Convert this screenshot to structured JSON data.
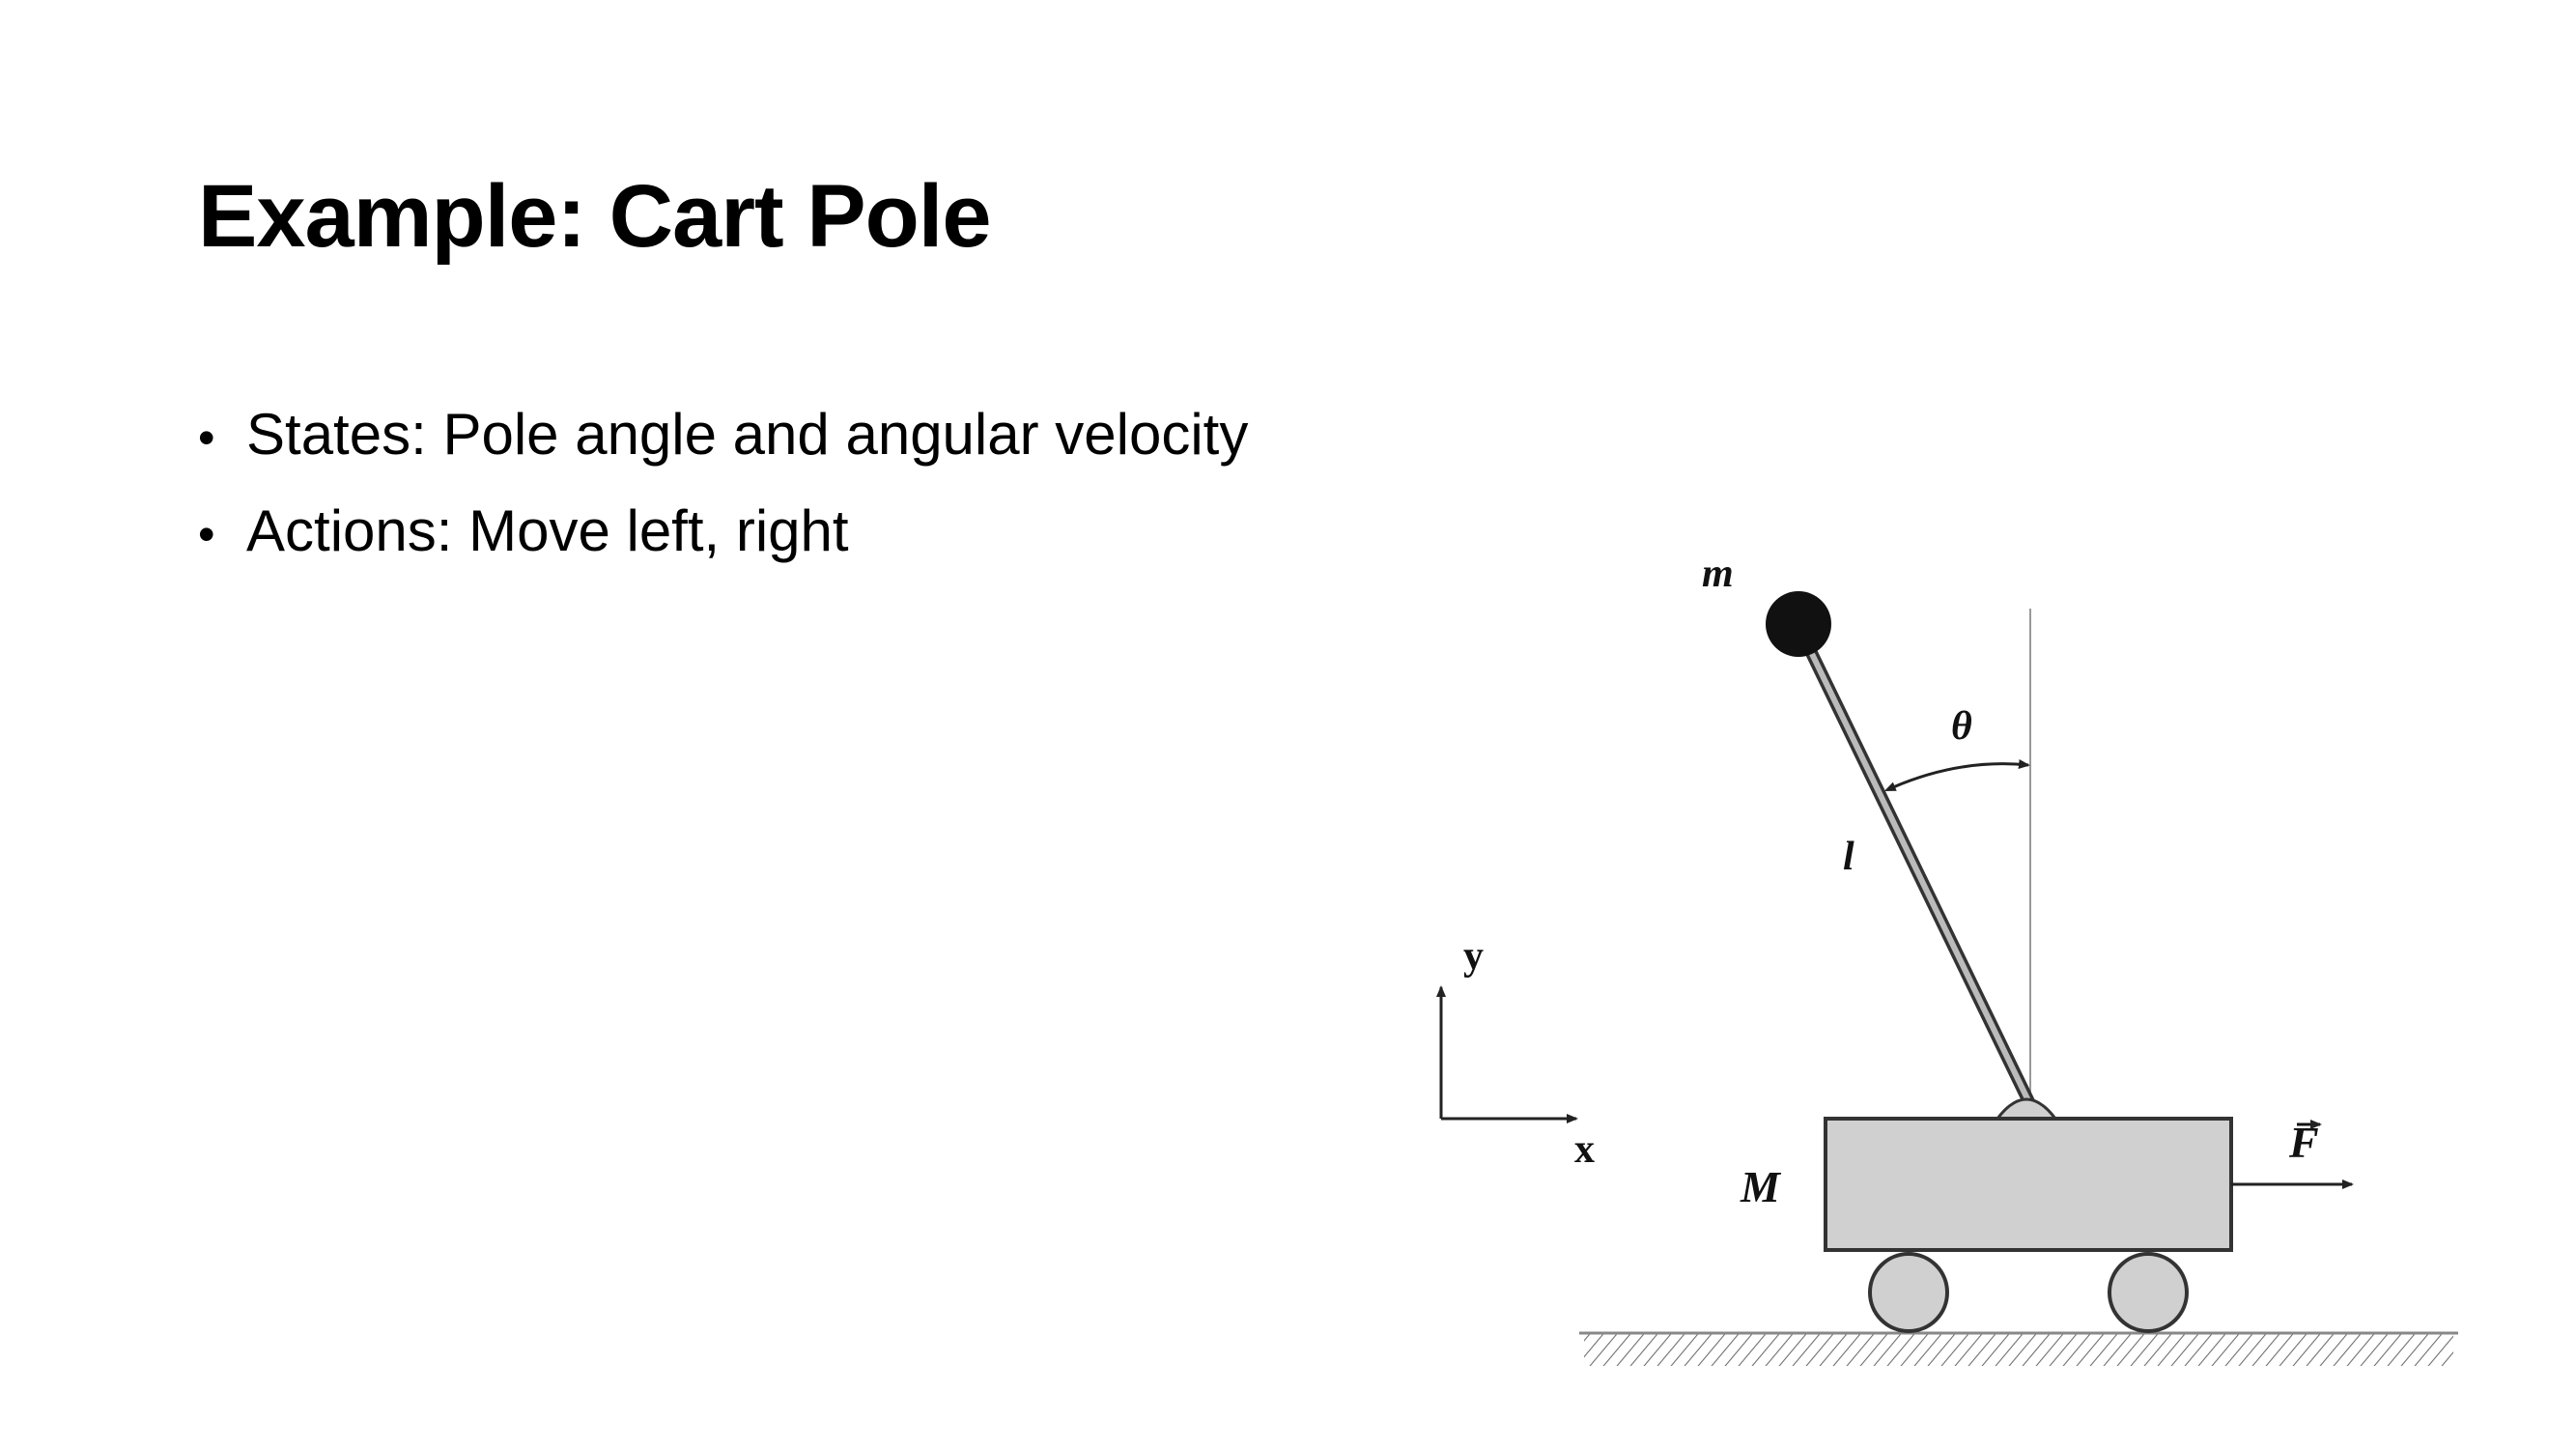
{
  "slide": {
    "title": "Example: Cart Pole",
    "bullets": [
      "States: Pole angle and angular velocity",
      "Actions: Move left, right"
    ]
  },
  "diagram": {
    "labels": {
      "mass": "m",
      "theta": "θ",
      "length": "l",
      "y_axis": "y",
      "x_axis": "x",
      "cart_mass": "M",
      "force": "F"
    },
    "colors": {
      "cart_fill": "#d0d0d0",
      "wheel_fill": "#d0d0d0",
      "bob_fill": "#111111",
      "line": "#222222"
    }
  }
}
